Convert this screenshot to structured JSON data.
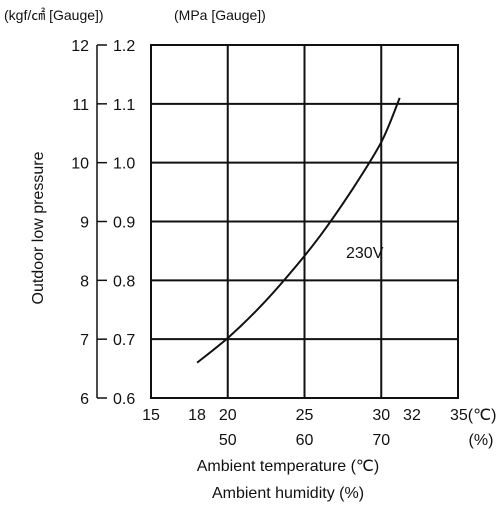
{
  "chart_data": {
    "type": "line",
    "units_left": "(kgf/㎠ [Gauge])",
    "units_right": "(MPa [Gauge])",
    "ylabel": "Outdoor low pressure",
    "xlabel": "Ambient temperature (℃)",
    "xlabel2": "Ambient humidity (%)",
    "xlim": [
      15,
      35
    ],
    "ylim": [
      0.6,
      1.2
    ],
    "grid": true,
    "x_ticks": [
      {
        "value": 15,
        "label": "15"
      },
      {
        "value": 18,
        "label": "18"
      },
      {
        "value": 20,
        "label": "20"
      },
      {
        "value": 25,
        "label": "25"
      },
      {
        "value": 30,
        "label": "30"
      },
      {
        "value": 32,
        "label": "32"
      },
      {
        "value": 35,
        "label": "35(℃)"
      }
    ],
    "x_ticks2": [
      {
        "value": 20,
        "label": "50"
      },
      {
        "value": 25,
        "label": "60"
      },
      {
        "value": 30,
        "label": "70"
      },
      {
        "value": 35,
        "label": "(%)"
      }
    ],
    "y_ticks_left": [
      {
        "value": 0.6,
        "label": "6"
      },
      {
        "value": 0.7,
        "label": "7"
      },
      {
        "value": 0.8,
        "label": "8"
      },
      {
        "value": 0.9,
        "label": "9"
      },
      {
        "value": 1.0,
        "label": "10"
      },
      {
        "value": 1.1,
        "label": "11"
      },
      {
        "value": 1.2,
        "label": "12"
      }
    ],
    "y_ticks_right": [
      {
        "value": 0.6,
        "label": "0.6"
      },
      {
        "value": 0.7,
        "label": "0.7"
      },
      {
        "value": 0.8,
        "label": "0.8"
      },
      {
        "value": 0.9,
        "label": "0.9"
      },
      {
        "value": 1.0,
        "label": "1.0"
      },
      {
        "value": 1.1,
        "label": "1.1"
      },
      {
        "value": 1.2,
        "label": "1.2"
      }
    ],
    "series": [
      {
        "name": "230V",
        "x": [
          18,
          20,
          22,
          24,
          26,
          28,
          30,
          31.2
        ],
        "values": [
          0.66,
          0.702,
          0.752,
          0.81,
          0.875,
          0.95,
          1.035,
          1.11
        ]
      }
    ]
  }
}
